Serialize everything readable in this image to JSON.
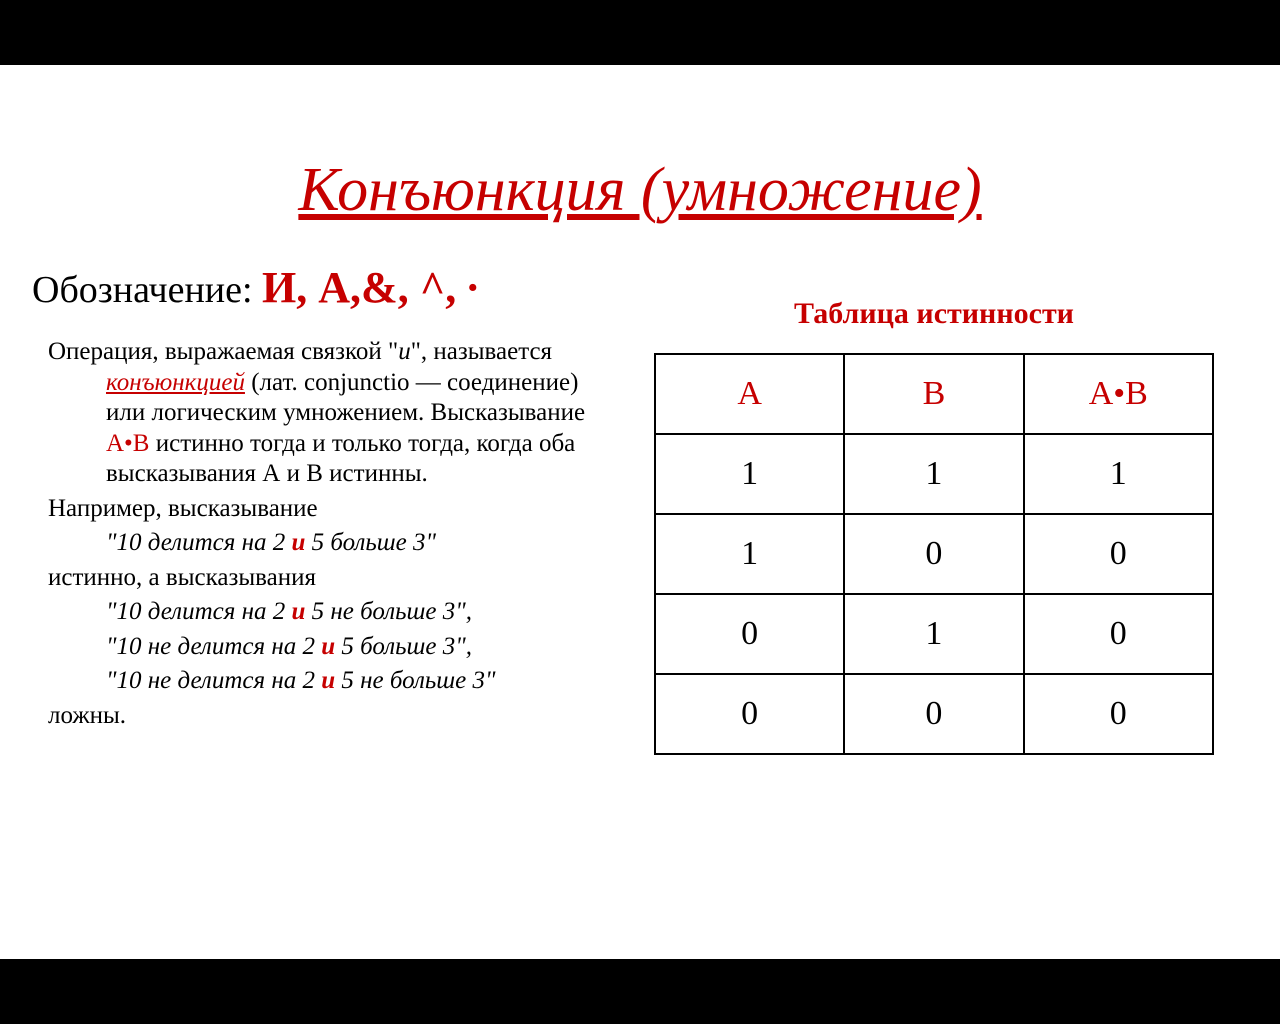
{
  "title": "Конъюнкция (умножение)",
  "notation_label": "Обозначение: ",
  "notation_symbols": "И, А,&, ^, ∙",
  "left": {
    "p1_a": "Операция, выражаемая связкой \"",
    "p1_i": "и",
    "p1_b": "\", называется ",
    "p1_link": "конъюнкцией",
    "p1_c": " (лат. conjunctio — соединение) или логическим умножением. Высказывание ",
    "p1_ab": "А•В",
    "p1_d": " истинно тогда и только тогда, когда оба высказывания А и В истинны.",
    "p2": "Например, высказывание",
    "p3_a": "\"10 делится на 2 ",
    "p3_and": "и",
    "p3_b": " 5 больше 3\"",
    "p4": "истинно, а высказывания",
    "p5_a": "\"10 делится на 2 ",
    "p5_and": "и",
    "p5_b": " 5 не больше 3\",",
    "p6_a": "\"10 не делится на 2 ",
    "p6_and": "и",
    "p6_b": " 5 больше 3\",",
    "p7_a": "\"10 не делится на 2 ",
    "p7_and": "и",
    "p7_b": " 5 не больше 3\"",
    "p8": "ложны."
  },
  "table": {
    "title": "Таблица истинности",
    "headers": [
      "А",
      "В",
      "А•В"
    ],
    "rows": [
      [
        "1",
        "1",
        "1"
      ],
      [
        "1",
        "0",
        "0"
      ],
      [
        "0",
        "1",
        "0"
      ],
      [
        "0",
        "0",
        "0"
      ]
    ],
    "col_widths": [
      "190px",
      "180px",
      "190px"
    ],
    "header_color": "#c60000",
    "cell_color": "#000000",
    "border_color": "#000000"
  },
  "colors": {
    "background": "#000000",
    "slide_bg": "#ffffff",
    "accent": "#c60000",
    "text": "#000000"
  }
}
